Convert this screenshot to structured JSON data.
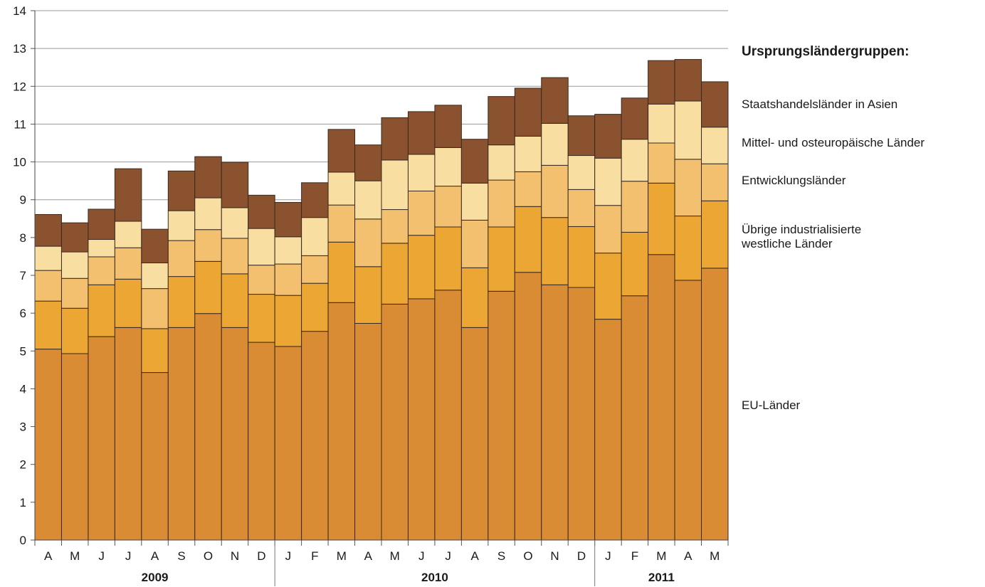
{
  "chart_data": {
    "type": "bar",
    "stacked": true,
    "categories": [
      "A",
      "M",
      "J",
      "J",
      "A",
      "S",
      "O",
      "N",
      "D",
      "J",
      "F",
      "M",
      "A",
      "M",
      "J",
      "J",
      "A",
      "S",
      "O",
      "N",
      "D",
      "J",
      "F",
      "M",
      "A",
      "M"
    ],
    "years": [
      {
        "label": "2009",
        "from": 0,
        "to": 8
      },
      {
        "label": "2010",
        "from": 9,
        "to": 20
      },
      {
        "label": "2011",
        "from": 21,
        "to": 25
      }
    ],
    "ylim": [
      0,
      14
    ],
    "yticks": [
      0,
      1,
      2,
      3,
      4,
      5,
      6,
      7,
      8,
      9,
      10,
      11,
      12,
      13,
      14
    ],
    "ylabel": "",
    "grid": true,
    "legend_title": "Ursprungsländergruppen:",
    "series": [
      {
        "name": "EU-Länder",
        "color": "#d98c33",
        "values": [
          5.05,
          4.93,
          5.38,
          5.62,
          4.43,
          5.62,
          5.99,
          5.62,
          5.23,
          5.12,
          5.52,
          6.28,
          5.73,
          6.24,
          6.38,
          6.61,
          5.62,
          6.58,
          7.08,
          6.75,
          6.68,
          5.84,
          6.46,
          7.55,
          6.87,
          7.19
        ]
      },
      {
        "name": "Übrige industrialisierte westliche Länder",
        "color": "#eca634",
        "values": [
          1.27,
          1.2,
          1.37,
          1.28,
          1.16,
          1.35,
          1.38,
          1.42,
          1.27,
          1.35,
          1.27,
          1.6,
          1.5,
          1.61,
          1.68,
          1.67,
          1.58,
          1.7,
          1.74,
          1.78,
          1.61,
          1.75,
          1.68,
          1.89,
          1.7,
          1.78
        ]
      },
      {
        "name": "Entwicklungsländer",
        "color": "#f2c06e",
        "values": [
          0.81,
          0.79,
          0.74,
          0.83,
          1.06,
          0.95,
          0.84,
          0.94,
          0.77,
          0.83,
          0.73,
          0.98,
          1.26,
          0.89,
          1.17,
          1.08,
          1.26,
          1.24,
          0.92,
          1.38,
          0.98,
          1.26,
          1.35,
          1.06,
          1.5,
          0.98
        ]
      },
      {
        "name": "Mittel- und osteuropäische Länder",
        "color": "#f9dea2",
        "values": [
          0.64,
          0.7,
          0.46,
          0.7,
          0.68,
          0.79,
          0.84,
          0.81,
          0.97,
          0.72,
          1.01,
          0.87,
          1.01,
          1.31,
          0.97,
          1.02,
          0.98,
          0.93,
          0.94,
          1.11,
          0.9,
          1.25,
          1.11,
          1.03,
          1.54,
          0.97
        ]
      },
      {
        "name": "Staatshandelsländer in Asien",
        "color": "#8b5230",
        "values": [
          0.84,
          0.77,
          0.8,
          1.39,
          0.89,
          1.05,
          1.09,
          1.2,
          0.88,
          0.91,
          0.92,
          1.13,
          0.95,
          1.12,
          1.13,
          1.12,
          1.16,
          1.28,
          1.27,
          1.21,
          1.05,
          1.16,
          1.09,
          1.15,
          1.1,
          1.2
        ]
      }
    ]
  }
}
